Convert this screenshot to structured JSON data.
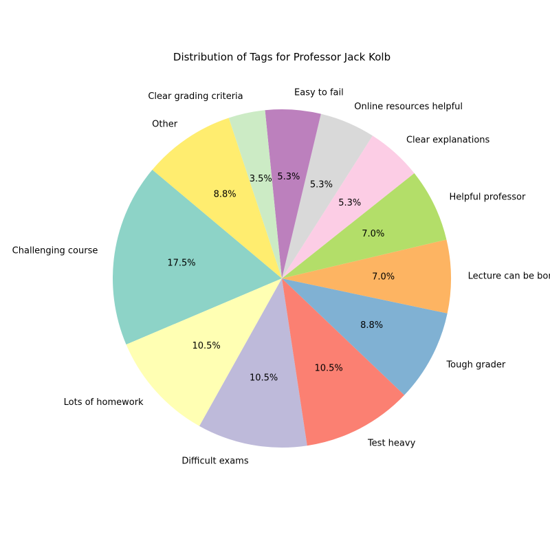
{
  "chart_data": {
    "type": "pie",
    "title": "Distribution of Tags for Professor Jack Kolb",
    "start_angle_deg": 140,
    "direction": "counterclockwise",
    "slices": [
      {
        "label": "Challenging course",
        "value": 17.5,
        "pct_label": "17.5%",
        "color": "#8dd3c7"
      },
      {
        "label": "Lots of homework",
        "value": 10.5,
        "pct_label": "10.5%",
        "color": "#ffffb3"
      },
      {
        "label": "Difficult exams",
        "value": 10.5,
        "pct_label": "10.5%",
        "color": "#bebada"
      },
      {
        "label": "Test heavy",
        "value": 10.5,
        "pct_label": "10.5%",
        "color": "#fb8072"
      },
      {
        "label": "Tough grader",
        "value": 8.8,
        "pct_label": "8.8%",
        "color": "#80b1d3"
      },
      {
        "label": "Lecture can be boring",
        "value": 7.0,
        "pct_label": "7.0%",
        "color": "#fdb462"
      },
      {
        "label": "Helpful professor",
        "value": 7.0,
        "pct_label": "7.0%",
        "color": "#b3de69"
      },
      {
        "label": "Clear explanations",
        "value": 5.3,
        "pct_label": "5.3%",
        "color": "#fccde5"
      },
      {
        "label": "Online resources helpful",
        "value": 5.3,
        "pct_label": "5.3%",
        "color": "#d9d9d9"
      },
      {
        "label": "Easy to fail",
        "value": 5.3,
        "pct_label": "5.3%",
        "color": "#bc80bd"
      },
      {
        "label": "Clear grading criteria",
        "value": 3.5,
        "pct_label": "3.5%",
        "color": "#ccebc5"
      },
      {
        "label": "Other",
        "value": 8.8,
        "pct_label": "8.8%",
        "color": "#ffed6f"
      }
    ]
  }
}
